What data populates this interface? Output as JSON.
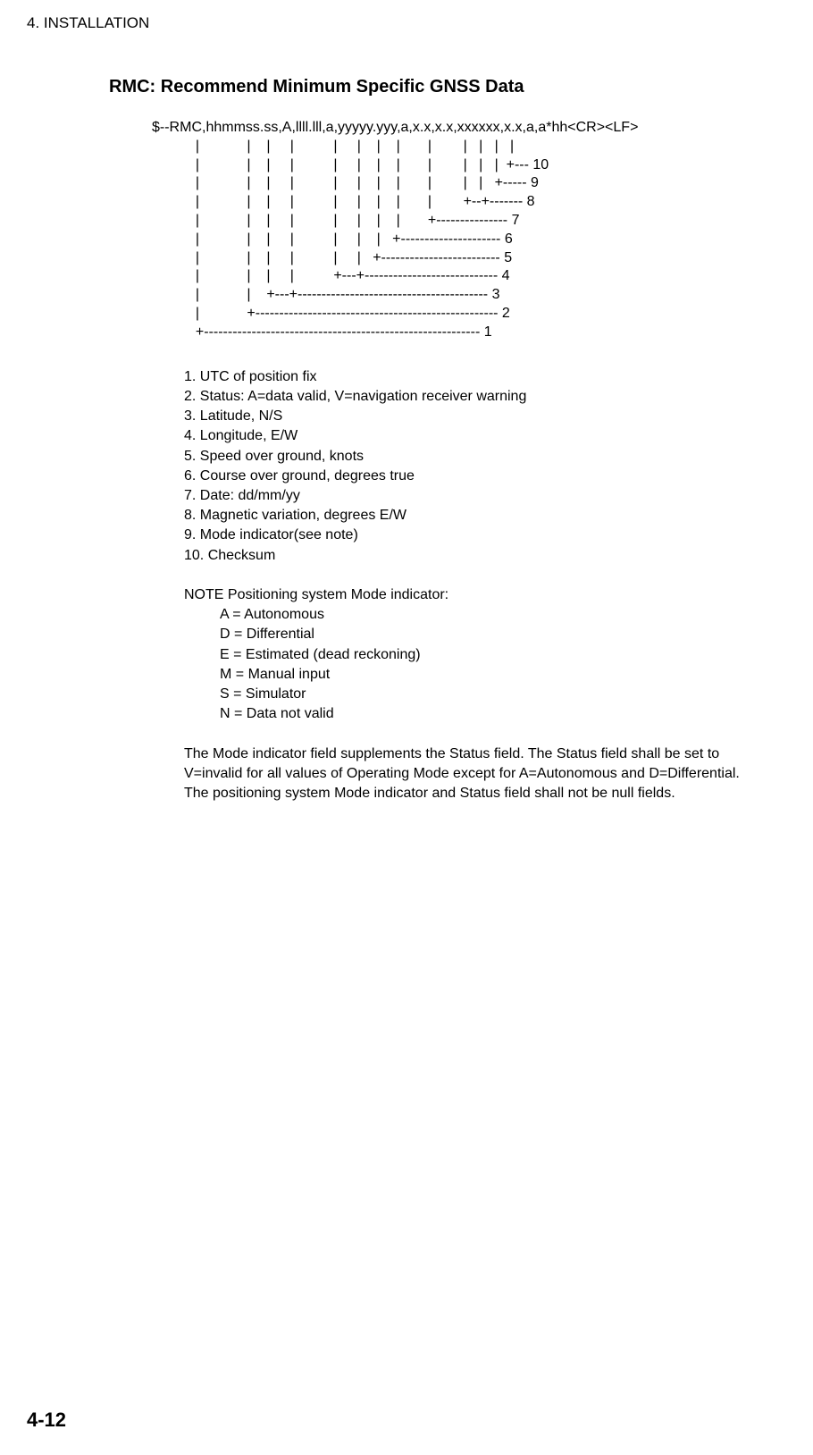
{
  "chapter": "4. INSTALLATION",
  "title": "RMC: Recommend Minimum Specific GNSS Data",
  "diagram": "$--RMC,hhmmss.ss,A,llll.lll,a,yyyyy.yyy,a,x.x,x.x,xxxxxx,x.x,a,a*hh<CR><LF>\n           |            |    |     |          |     |    |    |       |        |   |   |   |\n           |            |    |     |          |     |    |    |       |        |   |   |  +--- 10\n           |            |    |     |          |     |    |    |       |        |   |   +----- 9\n           |            |    |     |          |     |    |    |       |        +--+------- 8\n           |            |    |     |          |     |    |    |       +--------------- 7\n           |            |    |     |          |     |    |   +--------------------- 6\n           |            |    |     |          |     |   +------------------------- 5\n           |            |    |     |          +---+---------------------------- 4\n           |            |    +---+---------------------------------------- 3\n           |            +--------------------------------------------------- 2\n           +---------------------------------------------------------- 1",
  "fields": {
    "f1": "1. UTC of position fix",
    "f2": "2. Status: A=data valid, V=navigation receiver warning",
    "f3": "3. Latitude, N/S",
    "f4": "4. Longitude, E/W",
    "f5": "5. Speed over ground, knots",
    "f6": "6. Course over ground, degrees true",
    "f7": "7. Date: dd/mm/yy",
    "f8": "8. Magnetic variation, degrees E/W",
    "f9": "9. Mode indicator(see note)",
    "f10": "10. Checksum"
  },
  "note": {
    "head": "NOTE  Positioning system Mode indicator:",
    "a": "A = Autonomous",
    "d": "D = Differential",
    "e": "E = Estimated (dead reckoning)",
    "m": "M = Manual input",
    "s": "S = Simulator",
    "n": "N = Data not valid"
  },
  "paragraph": "The Mode indicator field supplements the Status field. The Status field shall be set to V=invalid for all values of Operating Mode except for A=Autonomous and D=Differential. The positioning system Mode indicator and Status field shall not be null fields.",
  "pageNumber": "4-12"
}
